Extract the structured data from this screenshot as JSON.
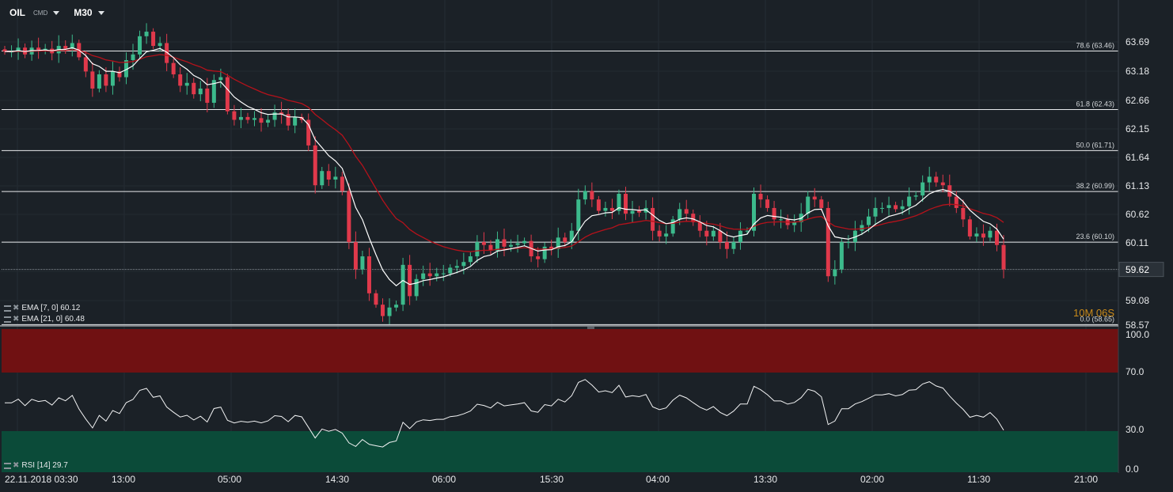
{
  "header": {
    "symbol": "OIL",
    "type": "CMD",
    "timeframe": "M30"
  },
  "indicators": {
    "ema7": "EMA [7, 0] 60.12",
    "ema21": "EMA [21, 0] 60.48",
    "rsi": "RSI [14] 29.7"
  },
  "timer": "10M 06S",
  "colors": {
    "background": "#1b2127",
    "up_candle": "#3cba8c",
    "down_candle": "#e0394b",
    "ema7": "#ffffff",
    "ema21": "#b5121b",
    "rsi_overbought_zone": "#701112",
    "rsi_oversold_zone": "#0b4b39"
  },
  "chart_data": [
    {
      "type": "candlestick",
      "x_tick_labels": [
        "22.11.2018 03:30",
        "13:00",
        "05:00",
        "14:30",
        "06:00",
        "15:30",
        "04:00",
        "13:30",
        "02:00",
        "11:30",
        "21:00"
      ],
      "y_tick_labels": [
        "63.69",
        "63.18",
        "62.66",
        "62.15",
        "61.64",
        "61.13",
        "60.62",
        "60.11",
        "59.62",
        "59.08",
        "58.57"
      ],
      "ylim": [
        58.57,
        63.95
      ],
      "current_price": "59.62",
      "fibonacci_levels": [
        {
          "label": "78.6 (63.46)",
          "value": 63.46
        },
        {
          "label": "61.8 (62.43)",
          "value": 62.43
        },
        {
          "label": "50.0 (61.71)",
          "value": 61.71
        },
        {
          "label": "38.2 (60.99)",
          "value": 60.99
        },
        {
          "label": "23.6 (60.10)",
          "value": 60.1
        },
        {
          "label": "0.0 (58.65)",
          "value": 58.65
        }
      ],
      "close_series": [
        63.45,
        63.45,
        63.52,
        63.4,
        63.52,
        63.48,
        63.5,
        63.42,
        63.55,
        63.5,
        63.6,
        63.35,
        63.1,
        62.8,
        63.05,
        62.85,
        63.1,
        63.0,
        63.3,
        63.4,
        63.72,
        63.8,
        63.55,
        63.6,
        63.25,
        63.05,
        62.85,
        62.9,
        62.7,
        62.8,
        62.55,
        62.95,
        63.0,
        62.4,
        62.25,
        62.3,
        62.25,
        62.28,
        62.2,
        62.25,
        62.38,
        62.35,
        62.15,
        62.3,
        62.25,
        61.8,
        61.1,
        61.35,
        61.2,
        61.25,
        61.0,
        60.1,
        59.62,
        59.85,
        59.2,
        59.0,
        58.8,
        58.95,
        59.0,
        59.7,
        59.15,
        59.45,
        59.55,
        59.5,
        59.55,
        59.55,
        59.65,
        59.68,
        59.75,
        59.85,
        60.1,
        60.05,
        59.95,
        60.15,
        60.02,
        60.05,
        60.08,
        60.12,
        59.85,
        59.8,
        60.02,
        59.98,
        60.18,
        60.1,
        60.3,
        60.85,
        61.0,
        60.85,
        60.65,
        60.7,
        60.65,
        60.95,
        60.6,
        60.65,
        60.62,
        60.7,
        60.3,
        60.2,
        60.25,
        60.5,
        60.68,
        60.6,
        60.45,
        60.3,
        60.2,
        60.3,
        60.1,
        59.98,
        60.1,
        60.3,
        60.3,
        60.95,
        60.85,
        60.7,
        60.5,
        60.5,
        60.4,
        60.45,
        60.6,
        60.9,
        60.85,
        60.7,
        59.5,
        59.62,
        60.1,
        60.1,
        60.3,
        60.4,
        60.55,
        60.7,
        60.7,
        60.75,
        60.68,
        60.73,
        60.9,
        60.92,
        61.15,
        61.25,
        61.15,
        61.1,
        60.9,
        60.7,
        60.5,
        60.2,
        60.25,
        60.18,
        60.3,
        60.05,
        59.62
      ],
      "ema7_value": 60.12,
      "ema21_value": 60.48
    },
    {
      "type": "line",
      "name": "RSI [14]",
      "y_tick_labels": [
        "100.0",
        "70.0",
        "30.0",
        "0.0"
      ],
      "ylim": [
        0,
        100
      ],
      "overbought": 70,
      "oversold": 30,
      "current_value": 29.7
    }
  ]
}
